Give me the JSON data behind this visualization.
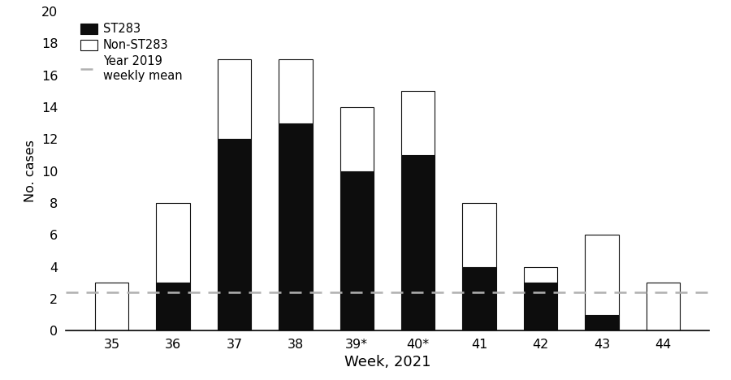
{
  "weeks": [
    "35",
    "36",
    "37",
    "38",
    "39*",
    "40*",
    "41",
    "42",
    "43",
    "44"
  ],
  "st283": [
    0,
    3,
    12,
    13,
    10,
    11,
    4,
    3,
    1,
    0
  ],
  "non_st283": [
    3,
    5,
    5,
    4,
    4,
    4,
    4,
    1,
    5,
    3
  ],
  "st283_color": "#0d0d0d",
  "non_st283_color": "#ffffff",
  "bar_edge_color": "#0d0d0d",
  "mean_2019": 2.4,
  "mean_color": "#b0b0b0",
  "xlabel": "Week, 2021",
  "ylabel": "No. cases",
  "ylim": [
    0,
    20
  ],
  "yticks": [
    0,
    2,
    4,
    6,
    8,
    10,
    12,
    14,
    16,
    18,
    20
  ],
  "legend_st283": "ST283",
  "legend_non_st283": "Non-ST283",
  "legend_mean": "Year 2019\nweekly mean",
  "bar_width": 0.55
}
